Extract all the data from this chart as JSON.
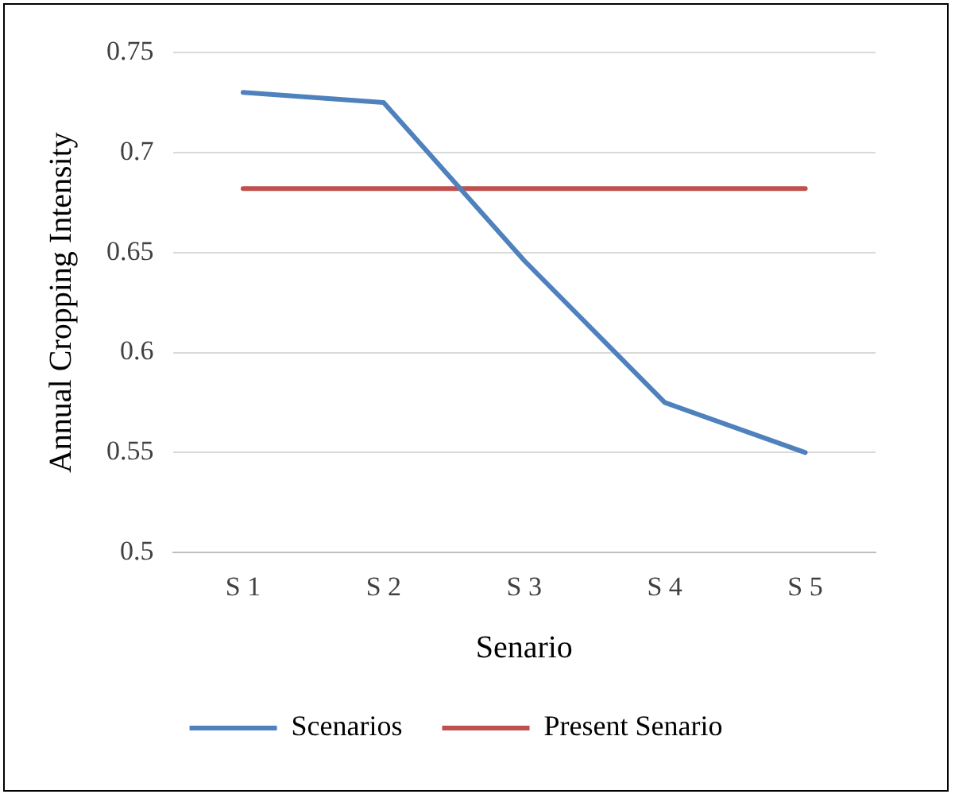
{
  "chart_data": {
    "type": "line",
    "xlabel": "Senario",
    "ylabel": "Annual Cropping Intensity",
    "categories": [
      "S 1",
      "S 2",
      "S 3",
      "S 4",
      "S 5"
    ],
    "series": [
      {
        "name": "Scenarios",
        "color": "#4f81bd",
        "values": [
          0.73,
          0.725,
          0.646,
          0.575,
          0.55
        ]
      },
      {
        "name": "Present Senario",
        "color": "#c0504d",
        "values": [
          0.682,
          0.682,
          0.682,
          0.682,
          0.682
        ]
      }
    ],
    "ylim": [
      0.5,
      0.75
    ],
    "yticks": [
      0.5,
      0.55,
      0.6,
      0.65,
      0.7,
      0.75
    ],
    "grid": "y",
    "legend": "bottom",
    "marker": "none",
    "line_style": "solid"
  }
}
